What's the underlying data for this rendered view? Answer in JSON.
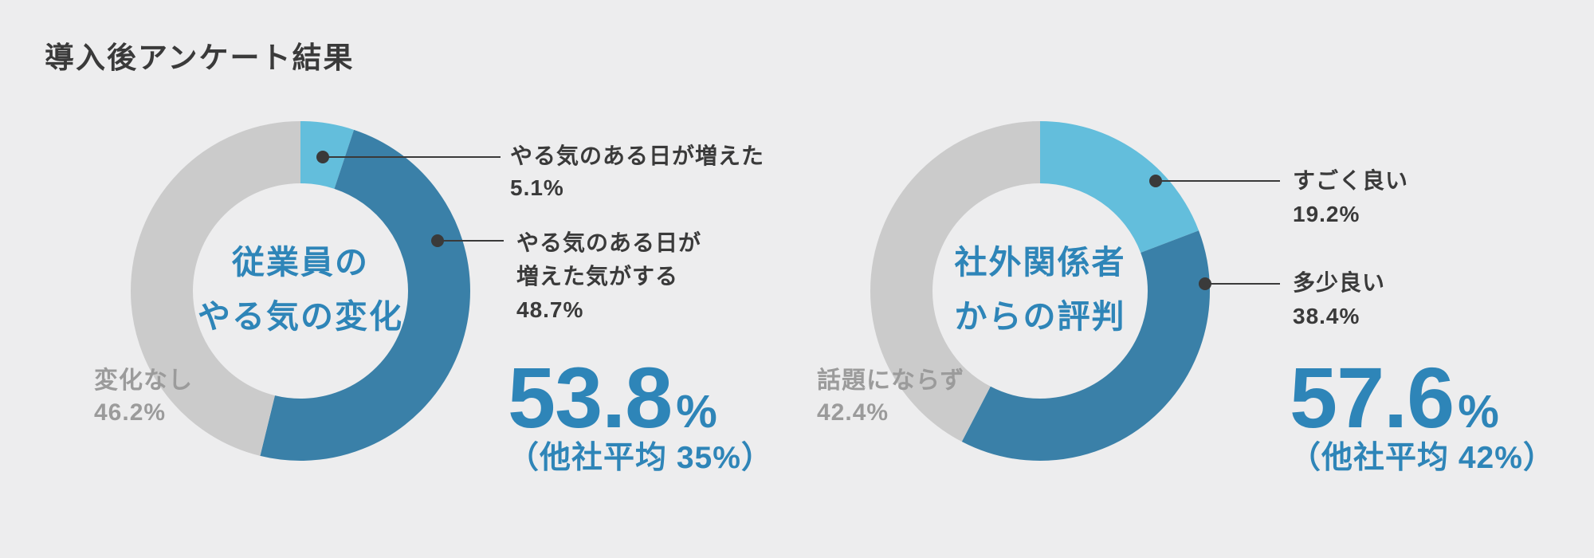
{
  "title": "導入後アンケート結果",
  "colors": {
    "background": "#EDEDEE",
    "text_dark": "#3A3A3A",
    "text_gray": "#9B9B9B",
    "text_accent": "#2E85B8",
    "segment_light_blue": "#63BEDC",
    "segment_dark_blue": "#3A80A8",
    "segment_gray": "#CBCBCB",
    "callout_line": "#3A3A3A"
  },
  "chart_data": [
    {
      "type": "pie",
      "variant": "donut",
      "start_angle": "top",
      "direction": "clockwise",
      "legend_position": "callouts",
      "center_title_lines": [
        "従業員の",
        "やる気の変化"
      ],
      "segments": [
        {
          "label": "やる気のある日が増えた",
          "value": 5.1,
          "color_key": "segment_light_blue"
        },
        {
          "label": "やる気のある日が増えた気がする",
          "value": 48.7,
          "color_key": "segment_dark_blue"
        },
        {
          "label": "変化なし",
          "value": 46.2,
          "color_key": "segment_gray"
        }
      ],
      "callouts": [
        {
          "lines": [
            "やる気のある日が増えた",
            "5.1%"
          ]
        },
        {
          "lines": [
            "やる気のある日が",
            "増えた気がする",
            "48.7%"
          ]
        }
      ],
      "side_label": {
        "lines": [
          "変化なし",
          "46.2%"
        ]
      },
      "highlight": {
        "value": "53.8",
        "unit": "%",
        "note": "（他社平均 35%）"
      }
    },
    {
      "type": "pie",
      "variant": "donut",
      "start_angle": "top",
      "direction": "clockwise",
      "legend_position": "callouts",
      "center_title_lines": [
        "社外関係者",
        "からの評判"
      ],
      "segments": [
        {
          "label": "すごく良い",
          "value": 19.2,
          "color_key": "segment_light_blue"
        },
        {
          "label": "多少良い",
          "value": 38.4,
          "color_key": "segment_dark_blue"
        },
        {
          "label": "話題にならず",
          "value": 42.4,
          "color_key": "segment_gray"
        }
      ],
      "callouts": [
        {
          "lines": [
            "すごく良い",
            "19.2%"
          ]
        },
        {
          "lines": [
            "多少良い",
            "38.4%"
          ]
        }
      ],
      "side_label": {
        "lines": [
          "話題にならず",
          "42.4%"
        ]
      },
      "highlight": {
        "value": "57.6",
        "unit": "%",
        "note": "（他社平均 42%）"
      }
    }
  ]
}
